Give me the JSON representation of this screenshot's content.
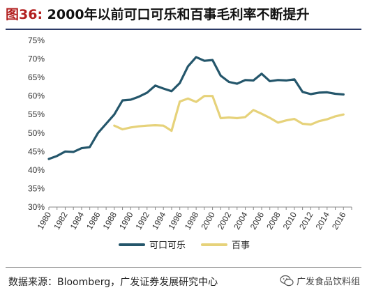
{
  "title": {
    "figure_no": "图36:",
    "text": "2000年以前可口可乐和百事毛利率不断提升"
  },
  "source": "数据来源：Bloomberg，广发证券发展研究中心",
  "watermark": "广发食品饮料组",
  "icons": {
    "watermark": "wechat-icon"
  },
  "colors": {
    "coca_cola": "#24566b",
    "pepsi": "#e6d27a"
  },
  "chart_data": {
    "type": "line",
    "ylim": [
      30,
      75
    ],
    "yticks": [
      "30%",
      "35%",
      "40%",
      "45%",
      "50%",
      "55%",
      "60%",
      "65%",
      "70%",
      "75%"
    ],
    "xlim": [
      1980,
      2017
    ],
    "xticks": [
      "1980",
      "1982",
      "1984",
      "1986",
      "1988",
      "1990",
      "1992",
      "1994",
      "1996",
      "1998",
      "2000",
      "2002",
      "2004",
      "2006",
      "2008",
      "2010",
      "2012",
      "2014",
      "2016"
    ],
    "legend": {
      "position": "bottom"
    },
    "series": [
      {
        "name": "可口可乐",
        "color": "#24566b",
        "points": [
          [
            1980,
            43.0
          ],
          [
            1981,
            43.8
          ],
          [
            1982,
            45.0
          ],
          [
            1983,
            44.9
          ],
          [
            1984,
            45.9
          ],
          [
            1985,
            46.2
          ],
          [
            1986,
            50.0
          ],
          [
            1987,
            52.5
          ],
          [
            1988,
            55.0
          ],
          [
            1989,
            58.8
          ],
          [
            1990,
            59.0
          ],
          [
            1991,
            59.8
          ],
          [
            1992,
            60.9
          ],
          [
            1993,
            62.8
          ],
          [
            1994,
            62.0
          ],
          [
            1995,
            61.3
          ],
          [
            1996,
            63.5
          ],
          [
            1997,
            68.0
          ],
          [
            1998,
            70.5
          ],
          [
            1999,
            69.5
          ],
          [
            2000,
            69.7
          ],
          [
            2001,
            65.5
          ],
          [
            2002,
            63.8
          ],
          [
            2003,
            63.3
          ],
          [
            2004,
            64.3
          ],
          [
            2005,
            64.2
          ],
          [
            2006,
            66.0
          ],
          [
            2007,
            64.0
          ],
          [
            2008,
            64.3
          ],
          [
            2009,
            64.2
          ],
          [
            2010,
            64.5
          ],
          [
            2011,
            61.1
          ],
          [
            2012,
            60.5
          ],
          [
            2013,
            60.9
          ],
          [
            2014,
            61.0
          ],
          [
            2015,
            60.6
          ],
          [
            2016,
            60.4
          ]
        ]
      },
      {
        "name": "百事",
        "color": "#e6d27a",
        "points": [
          [
            1988,
            52.0
          ],
          [
            1989,
            51.0
          ],
          [
            1990,
            51.5
          ],
          [
            1991,
            51.8
          ],
          [
            1992,
            52.0
          ],
          [
            1993,
            52.1
          ],
          [
            1994,
            52.0
          ],
          [
            1995,
            50.6
          ],
          [
            1996,
            58.5
          ],
          [
            1997,
            59.3
          ],
          [
            1998,
            58.4
          ],
          [
            1999,
            60.0
          ],
          [
            2000,
            60.0
          ],
          [
            2001,
            54.0
          ],
          [
            2002,
            54.2
          ],
          [
            2003,
            54.0
          ],
          [
            2004,
            54.3
          ],
          [
            2005,
            56.2
          ],
          [
            2006,
            55.2
          ],
          [
            2007,
            54.1
          ],
          [
            2008,
            52.8
          ],
          [
            2009,
            53.4
          ],
          [
            2010,
            53.8
          ],
          [
            2011,
            52.5
          ],
          [
            2012,
            52.3
          ],
          [
            2013,
            53.2
          ],
          [
            2014,
            53.7
          ],
          [
            2015,
            54.5
          ],
          [
            2016,
            55.0
          ]
        ]
      }
    ]
  }
}
